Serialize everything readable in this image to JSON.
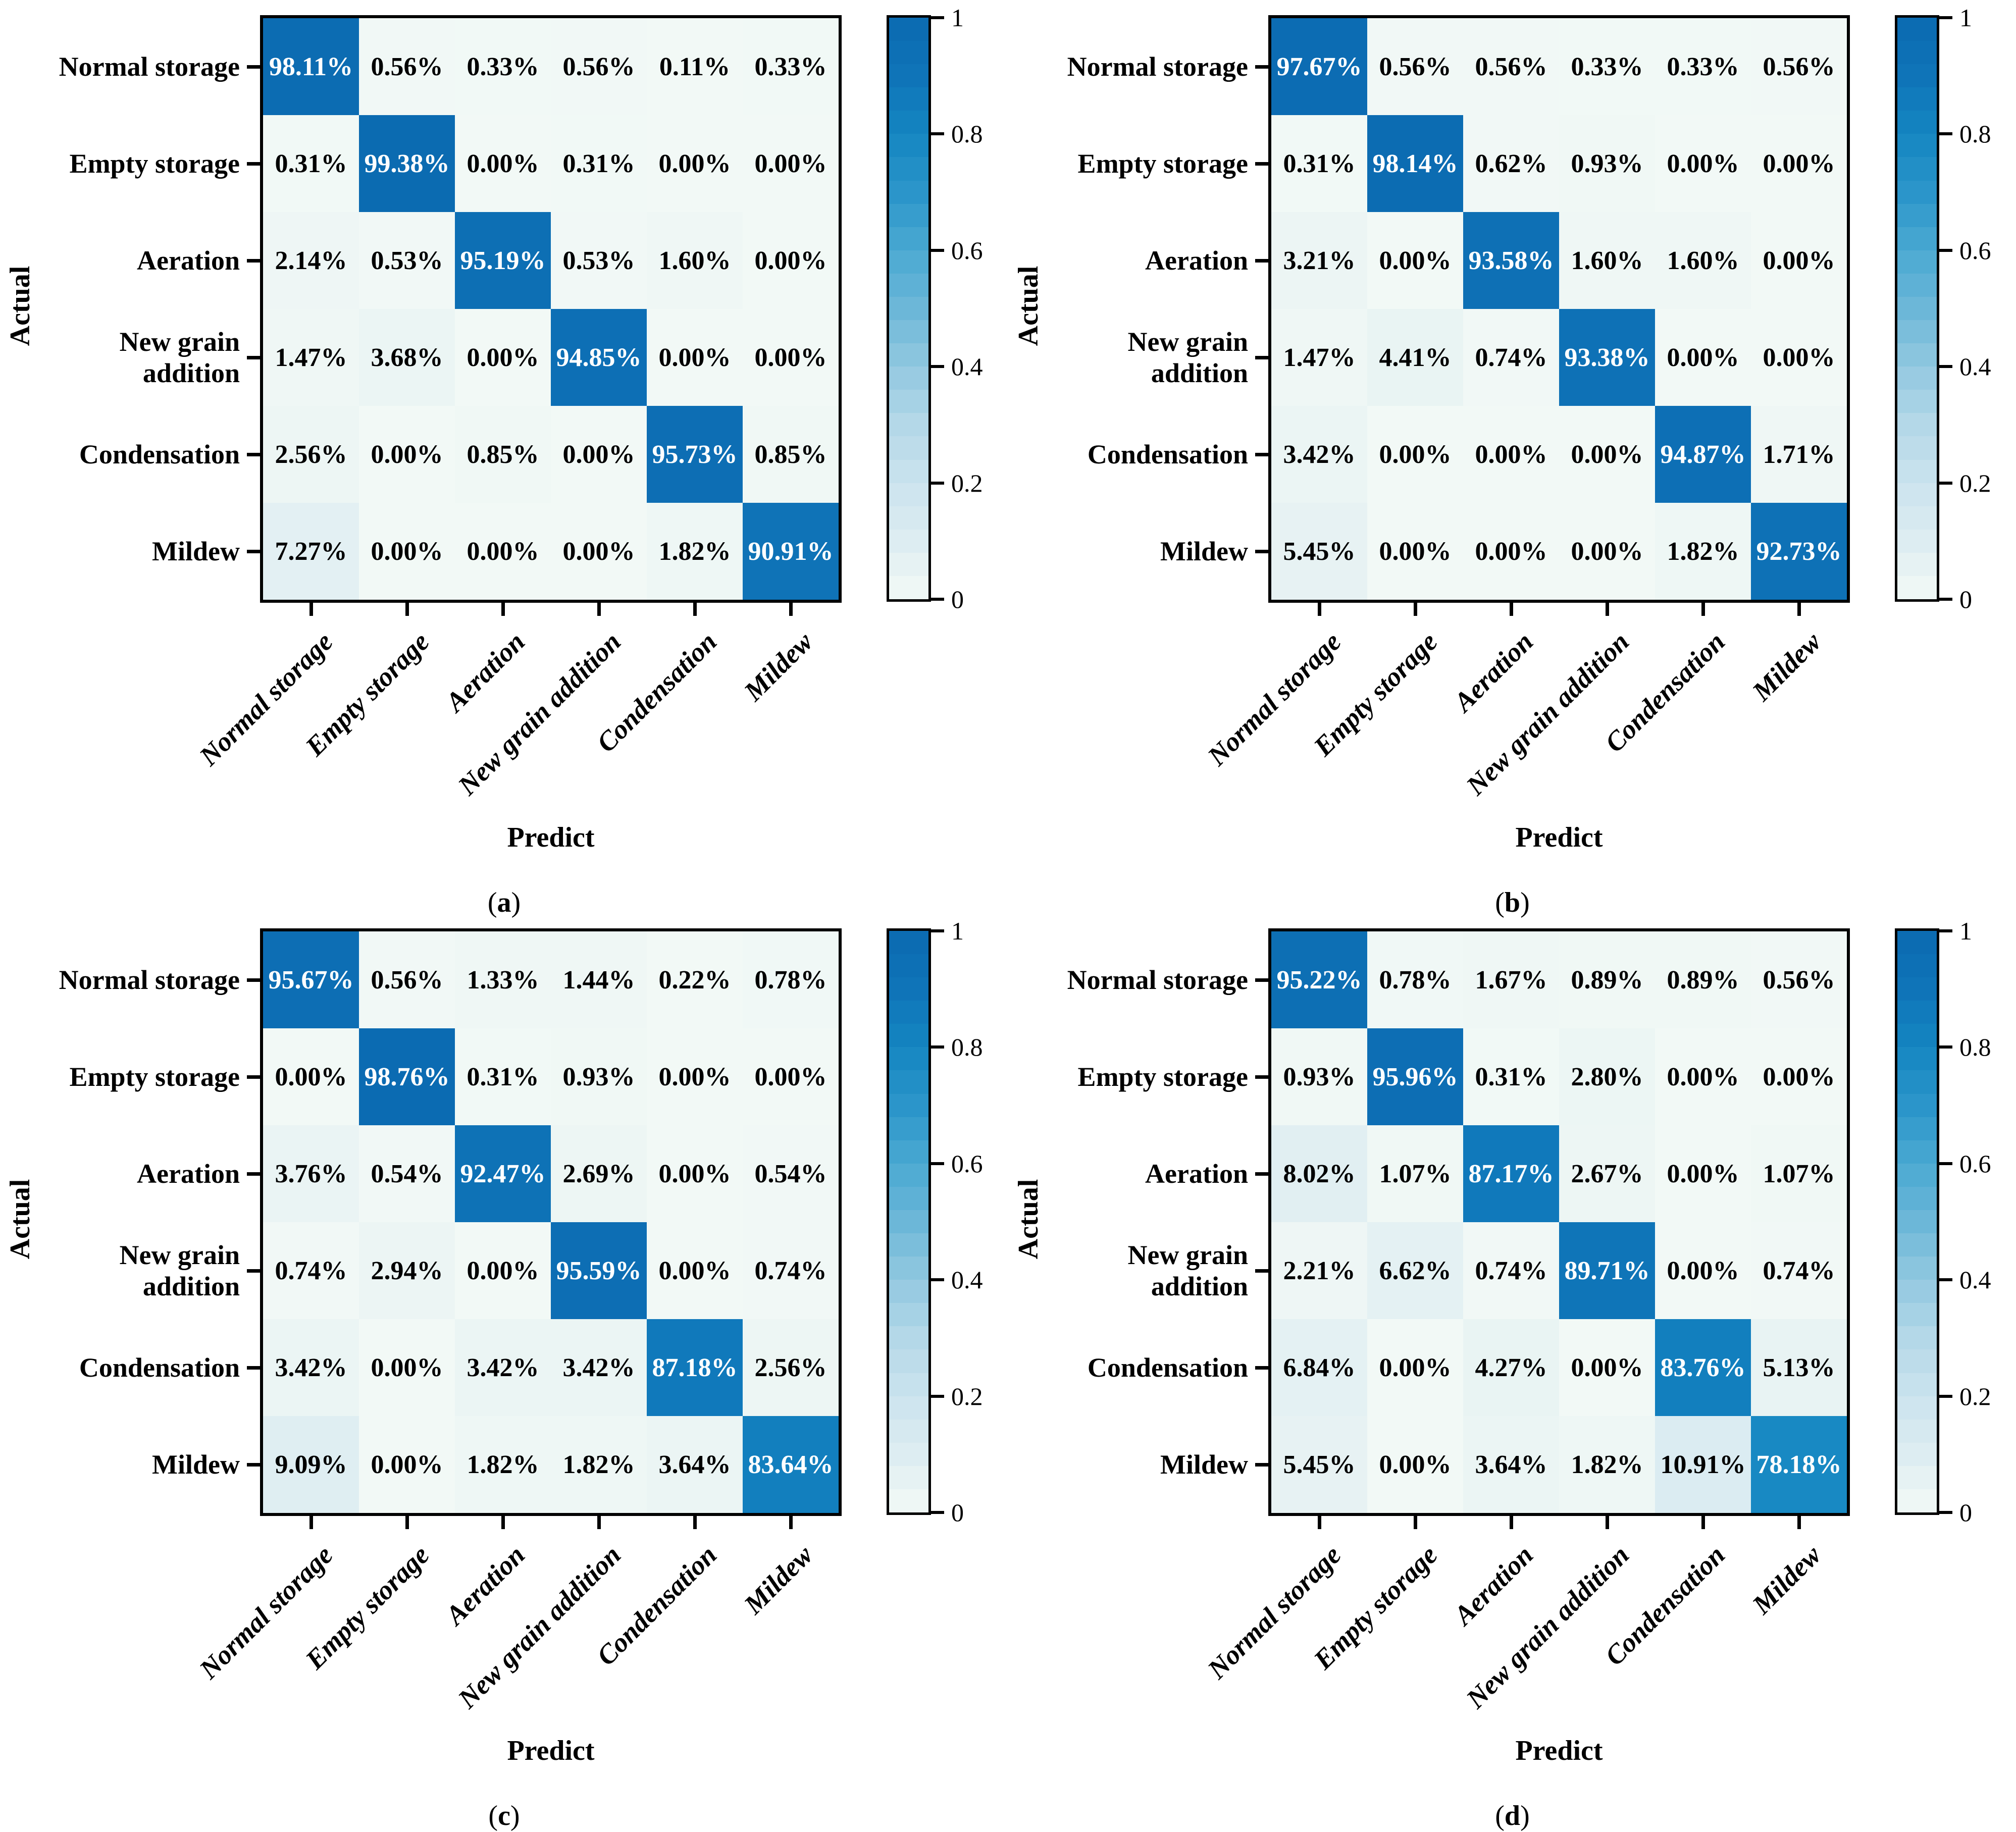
{
  "figure": {
    "description": "Four normalized confusion matrices comparing grain storage condition classification results",
    "subplot_letters": [
      "a",
      "b",
      "c",
      "d"
    ]
  },
  "classes": [
    "Normal storage",
    "Empty storage",
    "Aeration",
    "New grain addition",
    "Condensation",
    "Mildew"
  ],
  "y_label_lines": [
    [
      "Normal storage"
    ],
    [
      "Empty storage"
    ],
    [
      "Aeration"
    ],
    [
      "New grain",
      "addition"
    ],
    [
      "Condensation"
    ],
    [
      "Mildew"
    ]
  ],
  "axis_labels": {
    "x": "Predict",
    "y": "Actual"
  },
  "sublabel_format": {
    "open": "(",
    "close": ")"
  },
  "colorbar": {
    "min": 0,
    "max": 1,
    "tick_values": [
      0,
      0.2,
      0.4,
      0.6,
      0.8,
      1
    ],
    "tick_labels": [
      "0",
      "0.2",
      "0.4",
      "0.6",
      "0.8",
      "1"
    ]
  },
  "colors": {
    "background": "#ffffff",
    "axis": "#000000",
    "cell_text_dark": "#000000",
    "cell_text_light": "#ffffff",
    "diagonal_blue": "#0b6cb3",
    "colormap_stops": [
      [
        0.0,
        "#f2f9f6"
      ],
      [
        0.05,
        "#e8f3f3"
      ],
      [
        0.1,
        "#ddedf2"
      ],
      [
        0.2,
        "#cbe3ee"
      ],
      [
        0.3,
        "#b4d8e8"
      ],
      [
        0.4,
        "#92c8e0"
      ],
      [
        0.5,
        "#6cb7d8"
      ],
      [
        0.6,
        "#4aa9d2"
      ],
      [
        0.7,
        "#2b95ca"
      ],
      [
        0.8,
        "#1486c1"
      ],
      [
        0.9,
        "#0f74b8"
      ],
      [
        1.0,
        "#0b6ab1"
      ]
    ]
  },
  "chart_data": [
    {
      "type": "heatmap",
      "subplot_letter": "a",
      "unit": "%",
      "xlabel": "Predict",
      "ylabel": "Actual",
      "categories": [
        "Normal storage",
        "Empty storage",
        "Aeration",
        "New grain addition",
        "Condensation",
        "Mildew"
      ],
      "value_range": [
        0,
        1
      ],
      "rows": [
        [
          98.11,
          0.56,
          0.33,
          0.56,
          0.11,
          0.33
        ],
        [
          0.31,
          99.38,
          0.0,
          0.31,
          0.0,
          0.0
        ],
        [
          2.14,
          0.53,
          95.19,
          0.53,
          1.6,
          0.0
        ],
        [
          1.47,
          3.68,
          0.0,
          94.85,
          0.0,
          0.0
        ],
        [
          2.56,
          0.0,
          0.85,
          0.0,
          95.73,
          0.85
        ],
        [
          7.27,
          0.0,
          0.0,
          0.0,
          1.82,
          90.91
        ]
      ]
    },
    {
      "type": "heatmap",
      "subplot_letter": "b",
      "unit": "%",
      "xlabel": "Predict",
      "ylabel": "Actual",
      "categories": [
        "Normal storage",
        "Empty storage",
        "Aeration",
        "New grain addition",
        "Condensation",
        "Mildew"
      ],
      "value_range": [
        0,
        1
      ],
      "rows": [
        [
          97.67,
          0.56,
          0.56,
          0.33,
          0.33,
          0.56
        ],
        [
          0.31,
          98.14,
          0.62,
          0.93,
          0.0,
          0.0
        ],
        [
          3.21,
          0.0,
          93.58,
          1.6,
          1.6,
          0.0
        ],
        [
          1.47,
          4.41,
          0.74,
          93.38,
          0.0,
          0.0
        ],
        [
          3.42,
          0.0,
          0.0,
          0.0,
          94.87,
          1.71
        ],
        [
          5.45,
          0.0,
          0.0,
          0.0,
          1.82,
          92.73
        ]
      ]
    },
    {
      "type": "heatmap",
      "subplot_letter": "c",
      "unit": "%",
      "xlabel": "Predict",
      "ylabel": "Actual",
      "categories": [
        "Normal storage",
        "Empty storage",
        "Aeration",
        "New grain addition",
        "Condensation",
        "Mildew"
      ],
      "value_range": [
        0,
        1
      ],
      "rows": [
        [
          95.67,
          0.56,
          1.33,
          1.44,
          0.22,
          0.78
        ],
        [
          0.0,
          98.76,
          0.31,
          0.93,
          0.0,
          0.0
        ],
        [
          3.76,
          0.54,
          92.47,
          2.69,
          0.0,
          0.54
        ],
        [
          0.74,
          2.94,
          0.0,
          95.59,
          0.0,
          0.74
        ],
        [
          3.42,
          0.0,
          3.42,
          3.42,
          87.18,
          2.56
        ],
        [
          9.09,
          0.0,
          1.82,
          1.82,
          3.64,
          83.64
        ]
      ]
    },
    {
      "type": "heatmap",
      "subplot_letter": "d",
      "unit": "%",
      "xlabel": "Predict",
      "ylabel": "Actual",
      "categories": [
        "Normal storage",
        "Empty storage",
        "Aeration",
        "New grain addition",
        "Condensation",
        "Mildew"
      ],
      "value_range": [
        0,
        1
      ],
      "rows": [
        [
          95.22,
          0.78,
          1.67,
          0.89,
          0.89,
          0.56
        ],
        [
          0.93,
          95.96,
          0.31,
          2.8,
          0.0,
          0.0
        ],
        [
          8.02,
          1.07,
          87.17,
          2.67,
          0.0,
          1.07
        ],
        [
          2.21,
          6.62,
          0.74,
          89.71,
          0.0,
          0.74
        ],
        [
          6.84,
          0.0,
          4.27,
          0.0,
          83.76,
          5.13
        ],
        [
          5.45,
          0.0,
          3.64,
          1.82,
          10.91,
          78.18
        ]
      ]
    }
  ]
}
